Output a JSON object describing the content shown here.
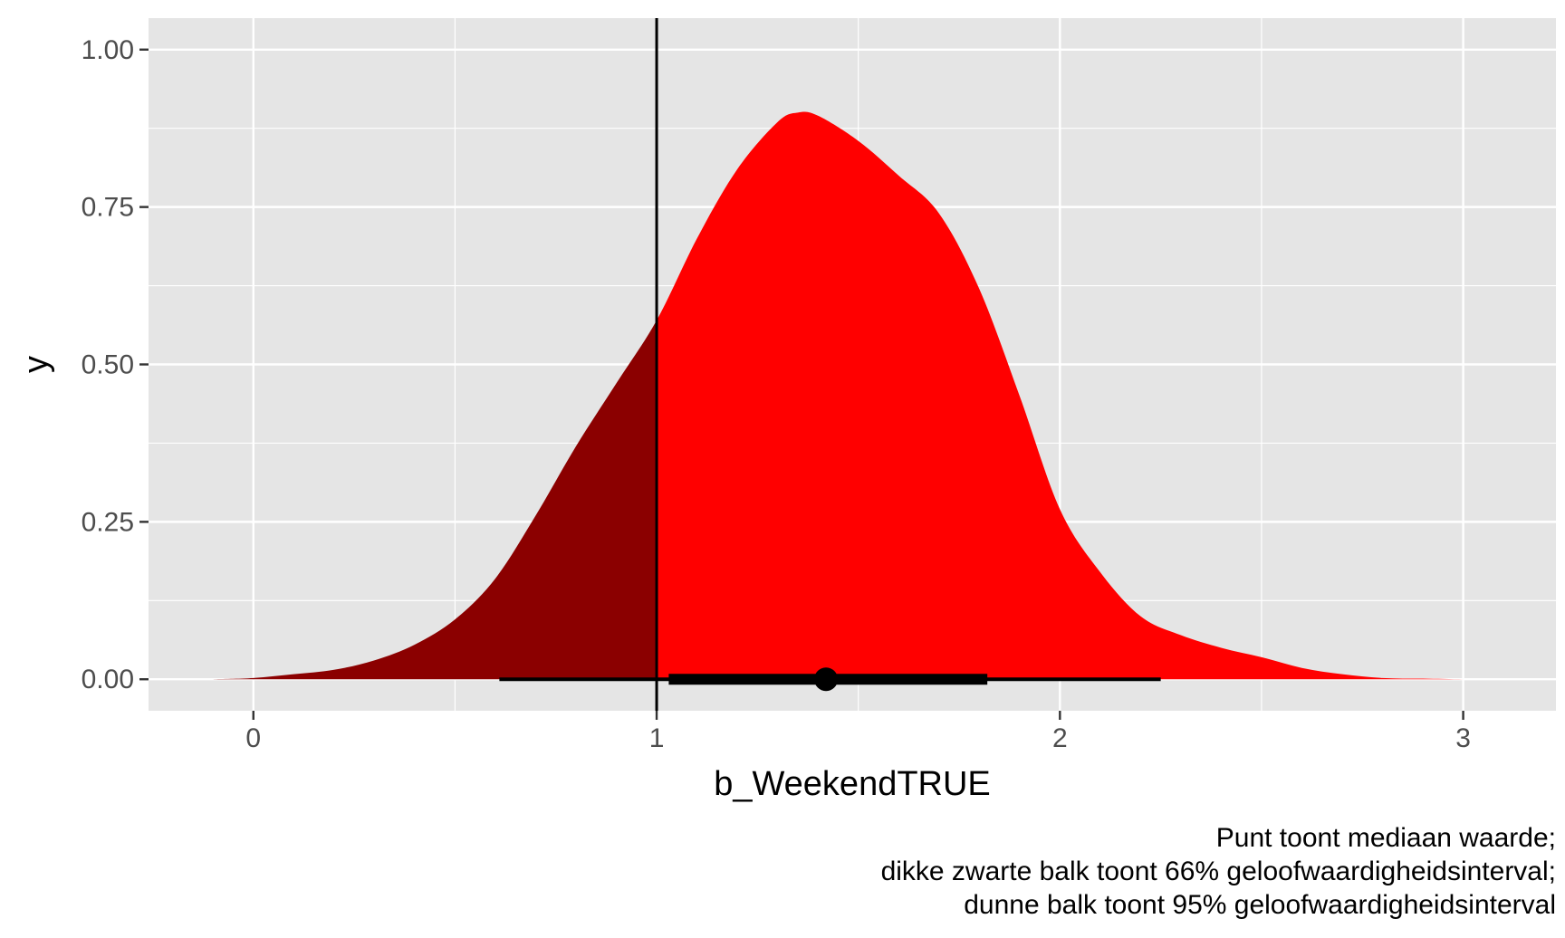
{
  "chart_data": {
    "type": "area",
    "subtype": "half-eye density with point-interval",
    "xlabel": "b_WeekendTRUE",
    "ylabel": "y",
    "xlim": [
      -0.26,
      3.23
    ],
    "ylim": [
      -0.05,
      1.05
    ],
    "x_ticks": [
      0,
      1,
      2,
      3
    ],
    "x_tick_labels": [
      "0",
      "1",
      "2",
      "3"
    ],
    "y_ticks": [
      0,
      0.25,
      0.5,
      0.75,
      1.0
    ],
    "y_tick_labels": [
      "0.00",
      "0.25",
      "0.50",
      "0.75",
      "1.00"
    ],
    "grid": true,
    "reference_line_x": 1,
    "density": {
      "x": [
        -0.1,
        0.0,
        0.1,
        0.2,
        0.3,
        0.4,
        0.5,
        0.6,
        0.7,
        0.8,
        0.9,
        1.0,
        1.1,
        1.2,
        1.3,
        1.35,
        1.4,
        1.5,
        1.6,
        1.7,
        1.8,
        1.9,
        2.0,
        2.1,
        2.2,
        2.3,
        2.4,
        2.5,
        2.6,
        2.7,
        2.8,
        2.9,
        3.0,
        3.07
      ],
      "y": [
        0.0,
        0.002,
        0.008,
        0.015,
        0.03,
        0.055,
        0.095,
        0.16,
        0.26,
        0.37,
        0.47,
        0.57,
        0.7,
        0.81,
        0.885,
        0.9,
        0.895,
        0.855,
        0.8,
        0.74,
        0.62,
        0.45,
        0.27,
        0.17,
        0.1,
        0.07,
        0.05,
        0.035,
        0.018,
        0.008,
        0.002,
        0.001,
        0.0,
        0.0
      ]
    },
    "fill_below_reference": "#8B0000",
    "fill_above_reference": "#FF0000",
    "median": 1.42,
    "interval_66": [
      1.03,
      1.82
    ],
    "interval_95": [
      0.61,
      2.25
    ],
    "caption_lines": [
      "Punt toont mediaan waarde;",
      "dikke zwarte balk toont 66% geloofwaardigheidsinterval;",
      "dunne balk toont 95% geloofwaardigheidsinterval"
    ]
  },
  "colors": {
    "panel_background": "#E5E5E5",
    "grid_major": "#FFFFFF",
    "axis_text": "#4D4D4D"
  }
}
